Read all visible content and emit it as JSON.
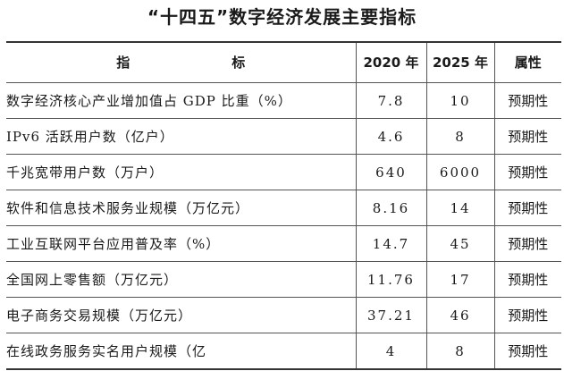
{
  "title": "“十四五”数字经济发展主要指标",
  "table": {
    "headers": [
      "指　　标",
      "2020 年",
      "2025 年",
      "属性"
    ],
    "rows": [
      {
        "name": "数字经济核心产业增加值占 GDP 比重（%）",
        "y2020": "7.8",
        "y2025": "10",
        "attr": "预期性"
      },
      {
        "name": "IPv6 活跃用户数（亿户）",
        "y2020": "4.6",
        "y2025": "8",
        "attr": "预期性"
      },
      {
        "name": "千兆宽带用户数（万户）",
        "y2020": "640",
        "y2025": "6000",
        "attr": "预期性"
      },
      {
        "name": "软件和信息技术服务业规模（万亿元）",
        "y2020": "8.16",
        "y2025": "14",
        "attr": "预期性"
      },
      {
        "name": "工业互联网平台应用普及率（%）",
        "y2020": "14.7",
        "y2025": "45",
        "attr": "预期性"
      },
      {
        "name": "全国网上零售额（万亿元）",
        "y2020": "11.76",
        "y2025": "17",
        "attr": "预期性"
      },
      {
        "name": "电子商务交易规模（万亿元）",
        "y2020": "37.21",
        "y2025": "46",
        "attr": "预期性"
      },
      {
        "name": "在线政务服务实名用户规模（亿",
        "y2020": "4",
        "y2025": "8",
        "attr": "预期性"
      }
    ]
  }
}
